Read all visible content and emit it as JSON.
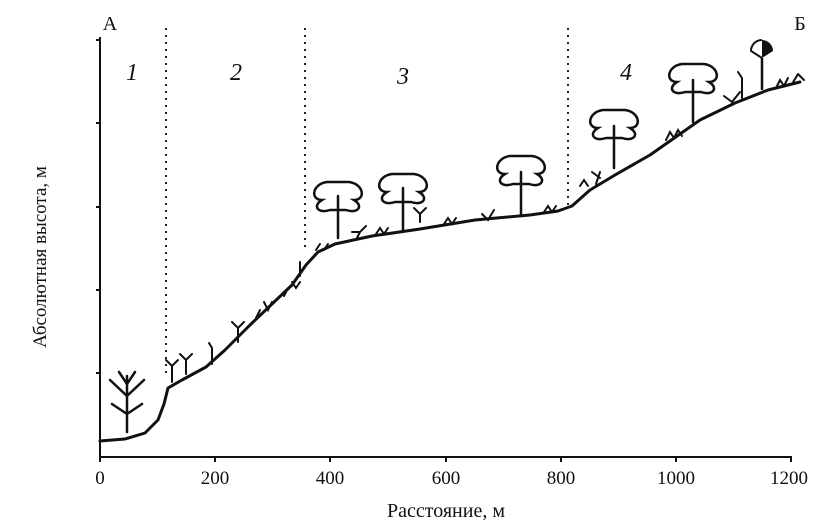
{
  "endpoints": {
    "start": "А",
    "end": "Б"
  },
  "zones": [
    {
      "label": "1",
      "x_from": 0,
      "x_to": 112
    },
    {
      "label": "2",
      "x_from": 112,
      "x_to": 355
    },
    {
      "label": "3",
      "x_from": 355,
      "x_to": 815
    },
    {
      "label": "4",
      "x_from": 815,
      "x_to": 1200
    }
  ],
  "axes": {
    "xlabel": "Расстояние, м",
    "ylabel": "Абсолютная высота, м",
    "x_ticks": [
      "0",
      "200",
      "400",
      "600",
      "800",
      "1000",
      "1200"
    ],
    "x_range": [
      0,
      1200
    ]
  },
  "profile_icons": {
    "trees": "deciduous-tree-icon",
    "herbs": "grass-sprig-icon"
  }
}
